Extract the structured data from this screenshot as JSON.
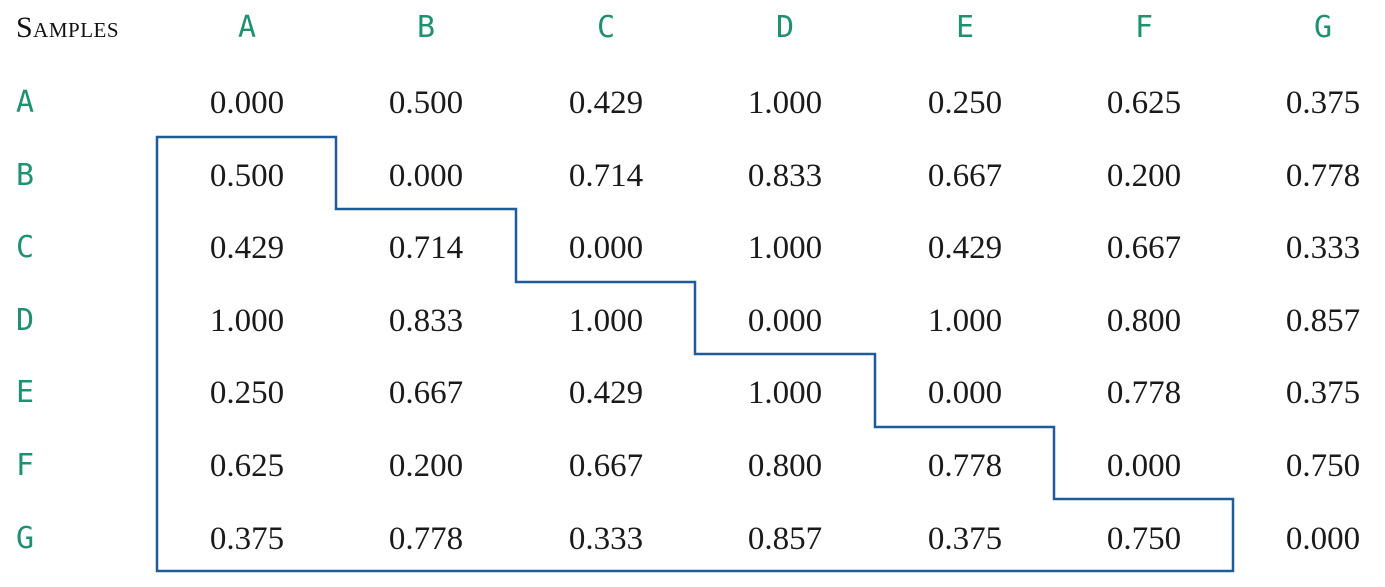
{
  "table": {
    "corner_label": "Samples",
    "column_headers": [
      "A",
      "B",
      "C",
      "D",
      "E",
      "F",
      "G"
    ],
    "rows": [
      {
        "label": "A",
        "values": [
          "0.000",
          "0.500",
          "0.429",
          "1.000",
          "0.250",
          "0.625",
          "0.375"
        ]
      },
      {
        "label": "B",
        "values": [
          "0.500",
          "0.000",
          "0.714",
          "0.833",
          "0.667",
          "0.200",
          "0.778"
        ]
      },
      {
        "label": "C",
        "values": [
          "0.429",
          "0.714",
          "0.000",
          "1.000",
          "0.429",
          "0.667",
          "0.333"
        ]
      },
      {
        "label": "D",
        "values": [
          "1.000",
          "0.833",
          "1.000",
          "0.000",
          "1.000",
          "0.800",
          "0.857"
        ]
      },
      {
        "label": "E",
        "values": [
          "0.250",
          "0.667",
          "0.429",
          "1.000",
          "0.000",
          "0.778",
          "0.375"
        ]
      },
      {
        "label": "F",
        "values": [
          "0.625",
          "0.200",
          "0.667",
          "0.800",
          "0.778",
          "0.000",
          "0.750"
        ]
      },
      {
        "label": "G",
        "values": [
          "0.375",
          "0.778",
          "0.333",
          "0.857",
          "0.375",
          "0.750",
          "0.000"
        ]
      }
    ]
  },
  "colors": {
    "header_text": "#1f9070",
    "value_text": "#1a1a1a",
    "bracket_line": "#1f5a9a"
  }
}
